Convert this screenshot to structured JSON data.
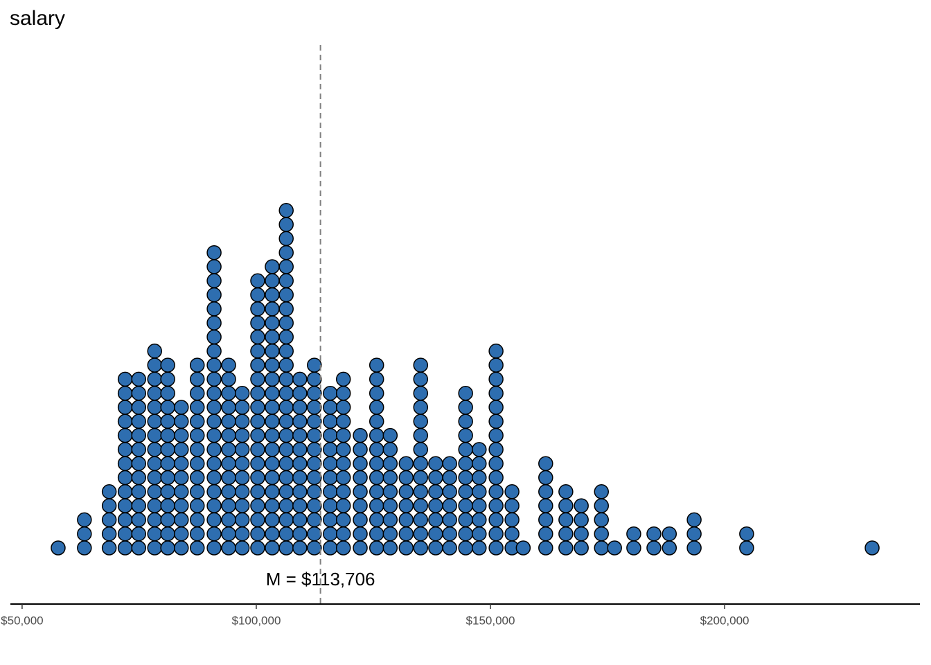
{
  "chart_data": {
    "type": "dotplot",
    "title": "salary",
    "x": [
      57700,
      63300,
      68600,
      72000,
      74900,
      78300,
      81100,
      84000,
      87400,
      91000,
      94100,
      97000,
      100300,
      103400,
      106400,
      109300,
      112400,
      115800,
      118600,
      122200,
      125700,
      128600,
      132000,
      135100,
      138300,
      141300,
      144700,
      147600,
      151200,
      154600,
      157000,
      161800,
      166100,
      169400,
      173700,
      176500,
      180600,
      184900,
      188200,
      193500,
      204700,
      231500
    ],
    "values": [
      1,
      3,
      5,
      13,
      13,
      15,
      14,
      11,
      14,
      22,
      14,
      12,
      20,
      21,
      25,
      13,
      14,
      12,
      13,
      9,
      14,
      9,
      7,
      14,
      7,
      7,
      12,
      8,
      15,
      5,
      1,
      7,
      5,
      4,
      5,
      1,
      2,
      2,
      2,
      3,
      2,
      1
    ],
    "color": "#2e6eb0",
    "xlim": [
      47500,
      241700
    ],
    "xticks": [
      {
        "value": 50000,
        "label": "$50,000"
      },
      {
        "value": 100000,
        "label": "$100,000"
      },
      {
        "value": 150000,
        "label": "$150,000"
      },
      {
        "value": 200000,
        "label": "$200,000"
      }
    ],
    "mean": {
      "value": 113706,
      "label": "M = $113,706"
    }
  }
}
